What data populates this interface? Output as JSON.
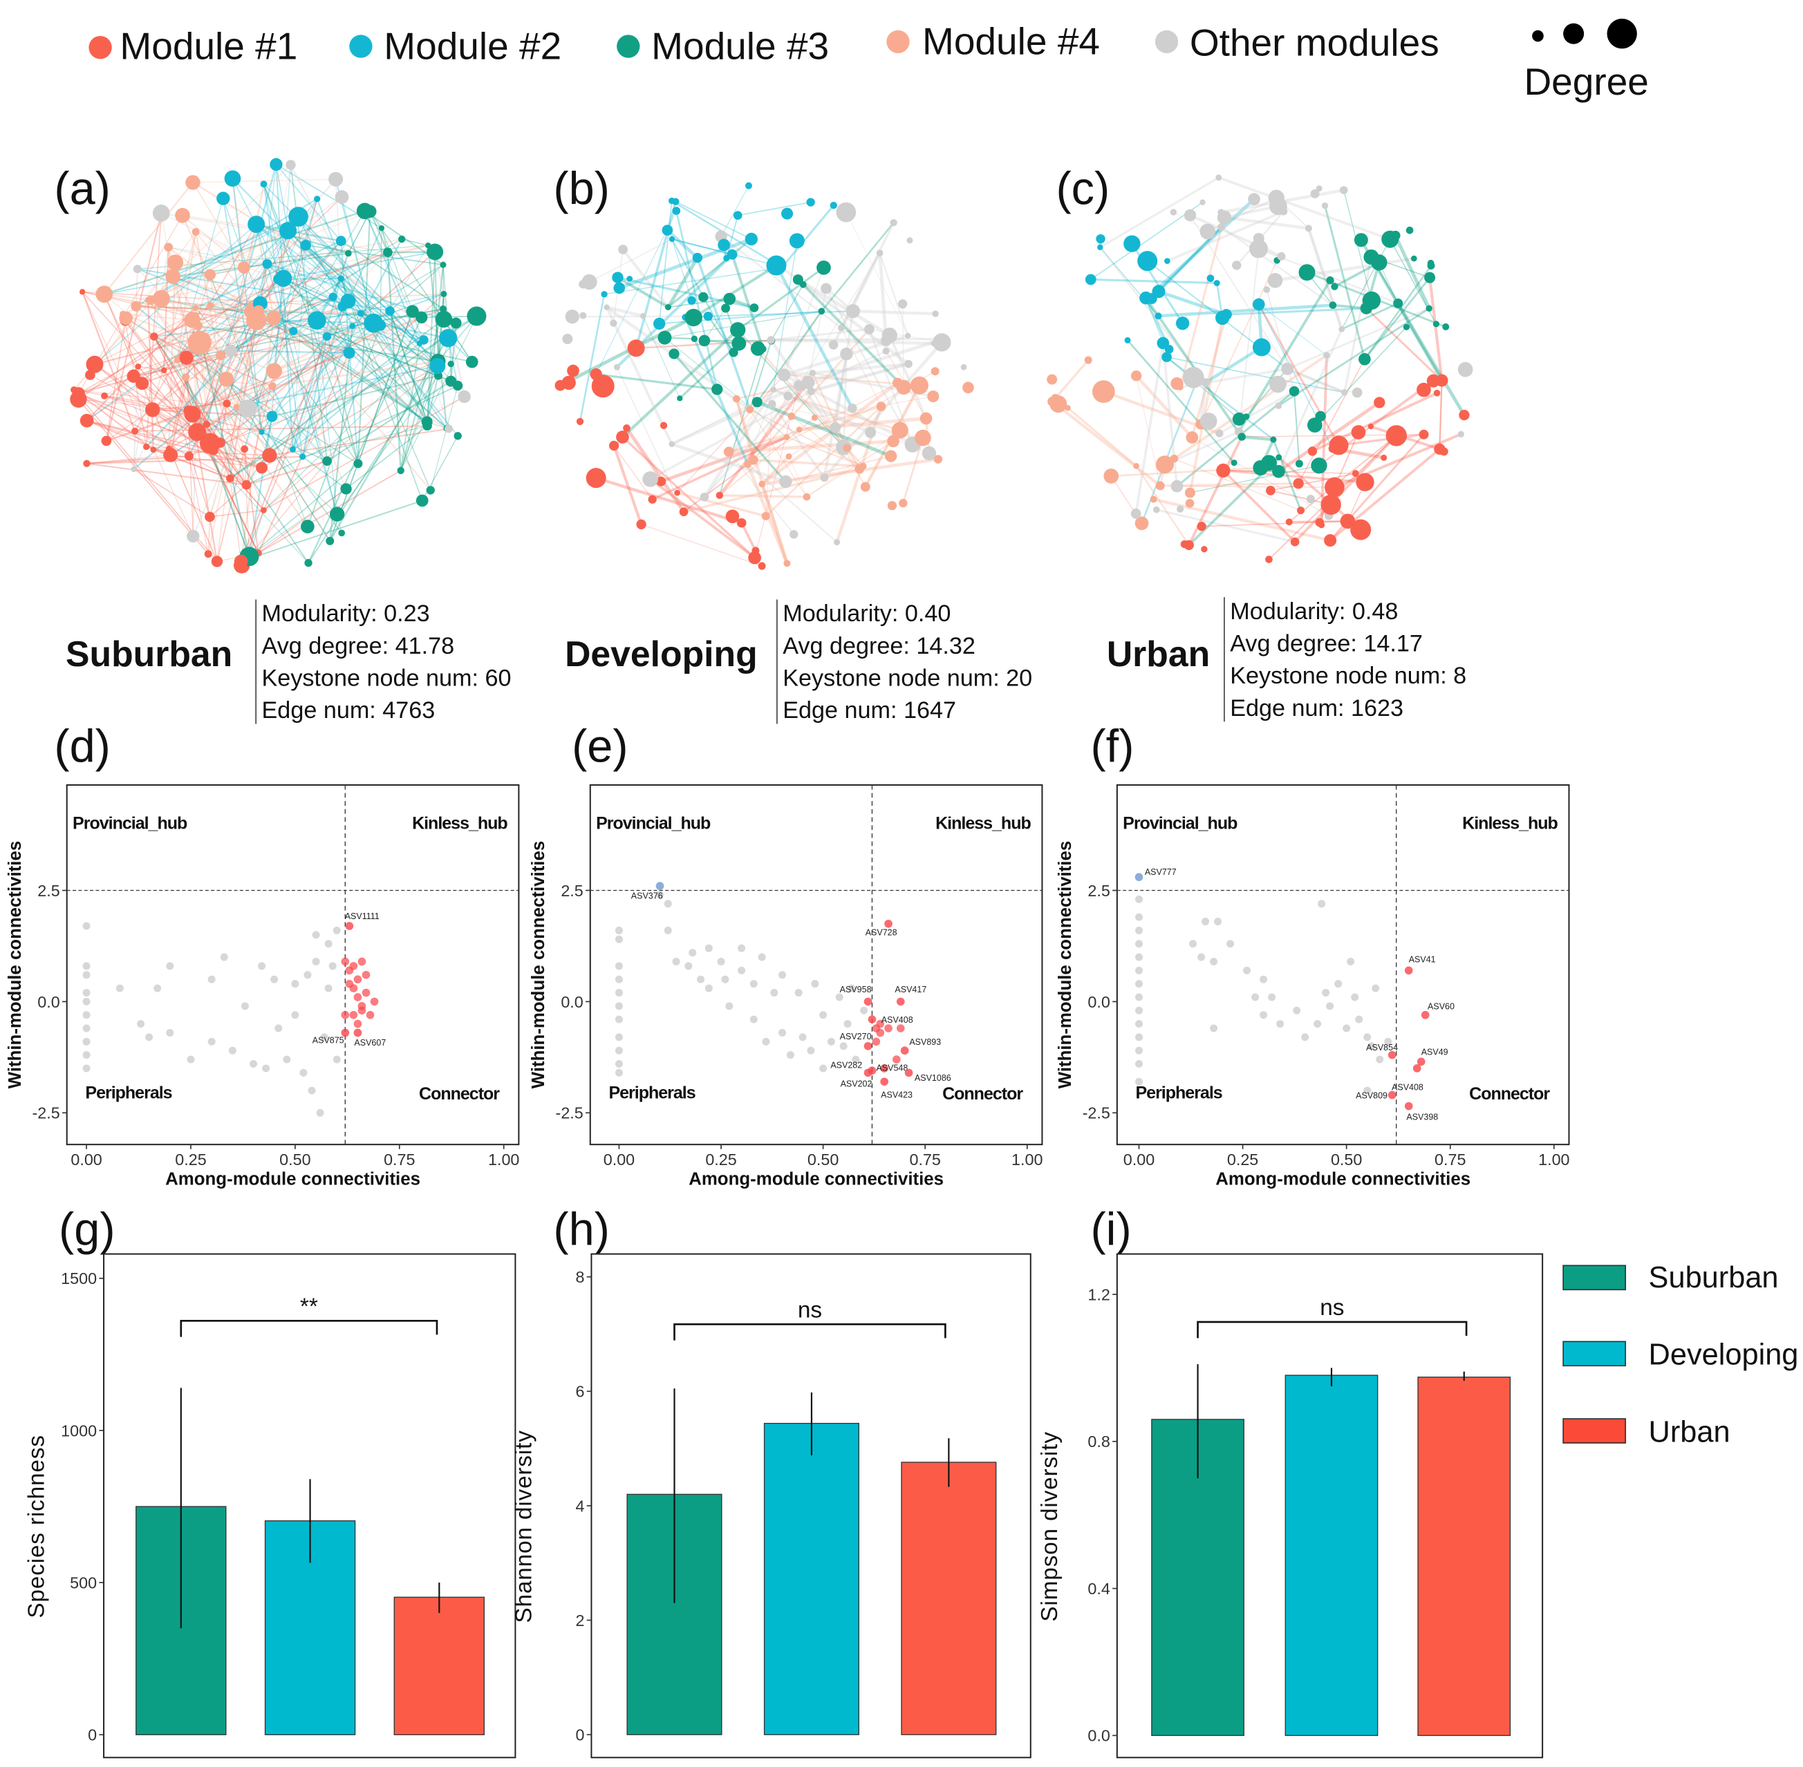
{
  "colors": {
    "module1": "#f9614f",
    "module2": "#14b7d2",
    "module3": "#12a085",
    "module4": "#f8ab90",
    "other": "#cfcfcf",
    "suburban": "#0b9e85",
    "developing": "#00b9cf",
    "urban": "#fc5c47",
    "provincial_hub": "#7098d0",
    "connector": "#f9444a"
  },
  "legend": {
    "modules": [
      {
        "label": "Module #1",
        "color_key": "module1"
      },
      {
        "label": "Module #2",
        "color_key": "module2"
      },
      {
        "label": "Module #3",
        "color_key": "module3"
      },
      {
        "label": "Module #4",
        "color_key": "module4"
      },
      {
        "label": "Other modules",
        "color_key": "other"
      }
    ],
    "degree_label": "Degree"
  },
  "networks": [
    {
      "panel": "(a)",
      "site": "Suburban",
      "stats": [
        "Modularity: 0.23",
        "Avg degree: 41.78",
        "Keystone node num: 60",
        "Edge num: 4763"
      ]
    },
    {
      "panel": "(b)",
      "site": "Developing",
      "stats": [
        "Modularity: 0.40",
        "Avg degree: 14.32",
        "Keystone node num: 20",
        "Edge num: 1647"
      ]
    },
    {
      "panel": "(c)",
      "site": "Urban",
      "stats": [
        "Modularity: 0.48",
        "Avg degree: 14.17",
        "Keystone node num: 8",
        "Edge num: 1623"
      ]
    }
  ],
  "chart_data": [
    {
      "type": "scatter",
      "panel": "(d)",
      "xlabel": "Among-module connectivities",
      "ylabel": "Within-module connectivities",
      "xlim": [
        -0.05,
        1.03
      ],
      "ylim": [
        -3.0,
        4.9
      ],
      "xticks": [
        "0.00",
        "0.25",
        "0.50",
        "0.75",
        "1.00"
      ],
      "yticks": [
        "-2.5",
        "0.0",
        "2.5"
      ],
      "thresholds": {
        "x": 0.62,
        "y": 2.5
      },
      "quadrants": [
        "Provincial_hub",
        "Kinless_hub",
        "Peripherals",
        "Connector"
      ],
      "gray_points": [
        [
          0,
          1.7
        ],
        [
          0,
          0.8
        ],
        [
          0,
          0.6
        ],
        [
          0,
          0.2
        ],
        [
          0,
          0
        ],
        [
          0,
          -0.3
        ],
        [
          0,
          -0.6
        ],
        [
          0,
          -0.9
        ],
        [
          0,
          -1.2
        ],
        [
          0,
          -1.5
        ],
        [
          0.08,
          0.3
        ],
        [
          0.13,
          -0.5
        ],
        [
          0.15,
          -0.8
        ],
        [
          0.17,
          0.3
        ],
        [
          0.2,
          0.8
        ],
        [
          0.2,
          -0.7
        ],
        [
          0.25,
          -1.3
        ],
        [
          0.3,
          0.5
        ],
        [
          0.3,
          -0.9
        ],
        [
          0.33,
          1.0
        ],
        [
          0.35,
          -1.1
        ],
        [
          0.38,
          -0.1
        ],
        [
          0.4,
          -1.4
        ],
        [
          0.42,
          0.8
        ],
        [
          0.43,
          -1.5
        ],
        [
          0.45,
          0.5
        ],
        [
          0.46,
          -0.6
        ],
        [
          0.48,
          -1.3
        ],
        [
          0.5,
          0.4
        ],
        [
          0.5,
          -0.3
        ],
        [
          0.52,
          -1.6
        ],
        [
          0.53,
          0.6
        ],
        [
          0.54,
          -2.0
        ],
        [
          0.55,
          1.5
        ],
        [
          0.55,
          0.9
        ],
        [
          0.56,
          -2.5
        ],
        [
          0.58,
          1.3
        ],
        [
          0.58,
          0.3
        ],
        [
          0.6,
          1.6
        ],
        [
          0.6,
          -1.3
        ],
        [
          0.59,
          0.8
        ],
        [
          0.57,
          -0.8
        ]
      ],
      "blue_points": [],
      "red_points": [
        [
          0.62,
          0.9
        ],
        [
          0.63,
          0.7
        ],
        [
          0.64,
          0.8
        ],
        [
          0.65,
          0.5
        ],
        [
          0.66,
          0.9
        ],
        [
          0.64,
          0.3
        ],
        [
          0.65,
          0.1
        ],
        [
          0.66,
          -0.1
        ],
        [
          0.67,
          0.2
        ],
        [
          0.68,
          -0.3
        ],
        [
          0.64,
          -0.3
        ],
        [
          0.62,
          -0.3
        ],
        [
          0.65,
          -0.5
        ],
        [
          0.66,
          -0.2
        ],
        [
          0.69,
          0
        ],
        [
          0.63,
          0.4
        ],
        [
          0.67,
          0.6
        ]
      ],
      "labeled_points": [
        {
          "label": "ASV1111",
          "x": 0.63,
          "y": 1.7,
          "kind": "red"
        },
        {
          "label": "ASV875",
          "x": 0.62,
          "y": -0.7,
          "kind": "red"
        },
        {
          "label": "ASV607",
          "x": 0.65,
          "y": -0.7,
          "kind": "red"
        }
      ]
    },
    {
      "type": "scatter",
      "panel": "(e)",
      "xlabel": "Among-module connectivities",
      "ylabel": "Within-module connectivities",
      "xlim": [
        -0.05,
        1.03
      ],
      "ylim": [
        -3.0,
        4.9
      ],
      "xticks": [
        "0.00",
        "0.25",
        "0.50",
        "0.75",
        "1.00"
      ],
      "yticks": [
        "-2.5",
        "0.0",
        "2.5"
      ],
      "thresholds": {
        "x": 0.62,
        "y": 2.5
      },
      "quadrants": [
        "Provincial_hub",
        "Kinless_hub",
        "Peripherals",
        "Connector"
      ],
      "gray_points": [
        [
          0,
          1.6
        ],
        [
          0,
          1.4
        ],
        [
          0,
          0.8
        ],
        [
          0,
          0.5
        ],
        [
          0,
          0.2
        ],
        [
          0,
          -0.1
        ],
        [
          0,
          -0.4
        ],
        [
          0,
          -0.8
        ],
        [
          0,
          -1.1
        ],
        [
          0,
          -1.4
        ],
        [
          0,
          -1.6
        ],
        [
          0.1,
          2.4
        ],
        [
          0.12,
          2.2
        ],
        [
          0.12,
          1.6
        ],
        [
          0.14,
          0.9
        ],
        [
          0.17,
          0.8
        ],
        [
          0.18,
          1.1
        ],
        [
          0.2,
          0.5
        ],
        [
          0.22,
          0.3
        ],
        [
          0.22,
          1.2
        ],
        [
          0.25,
          0.9
        ],
        [
          0.26,
          0.5
        ],
        [
          0.27,
          -0.1
        ],
        [
          0.3,
          0.7
        ],
        [
          0.3,
          1.2
        ],
        [
          0.33,
          0.4
        ],
        [
          0.33,
          -0.4
        ],
        [
          0.35,
          1.0
        ],
        [
          0.36,
          -0.9
        ],
        [
          0.38,
          0.2
        ],
        [
          0.4,
          0.6
        ],
        [
          0.4,
          -0.7
        ],
        [
          0.42,
          -1.2
        ],
        [
          0.44,
          0.2
        ],
        [
          0.45,
          -0.8
        ],
        [
          0.47,
          -1.1
        ],
        [
          0.48,
          0.4
        ],
        [
          0.5,
          -0.3
        ],
        [
          0.5,
          -1.5
        ],
        [
          0.52,
          -0.9
        ],
        [
          0.54,
          0.1
        ],
        [
          0.55,
          -1.0
        ],
        [
          0.56,
          -0.5
        ],
        [
          0.57,
          0.3
        ],
        [
          0.58,
          -1.3
        ],
        [
          0.6,
          -0.2
        ]
      ],
      "blue_points": [],
      "red_points": [
        [
          0.63,
          -0.6
        ],
        [
          0.64,
          -0.7
        ],
        [
          0.66,
          -0.6
        ],
        [
          0.64,
          -0.5
        ],
        [
          0.69,
          -0.6
        ],
        [
          0.68,
          -1.3
        ],
        [
          0.63,
          -0.9
        ]
      ],
      "labeled_points": [
        {
          "label": "ASV376",
          "x": 0.1,
          "y": 2.6,
          "kind": "blue"
        },
        {
          "label": "ASV728",
          "x": 0.66,
          "y": 1.75,
          "kind": "red"
        },
        {
          "label": "ASV958",
          "x": 0.61,
          "y": 0.0,
          "kind": "red"
        },
        {
          "label": "ASV417",
          "x": 0.69,
          "y": 0.0,
          "kind": "red"
        },
        {
          "label": "ASV408",
          "x": 0.62,
          "y": -0.4,
          "kind": "red"
        },
        {
          "label": "ASV270",
          "x": 0.61,
          "y": -1.0,
          "kind": "red"
        },
        {
          "label": "ASV893",
          "x": 0.7,
          "y": -1.1,
          "kind": "red"
        },
        {
          "label": "ASV282",
          "x": 0.61,
          "y": -1.6,
          "kind": "red"
        },
        {
          "label": "ASV548",
          "x": 0.65,
          "y": -1.5,
          "kind": "red"
        },
        {
          "label": "ASV1086",
          "x": 0.71,
          "y": -1.6,
          "kind": "red"
        },
        {
          "label": "ASV202",
          "x": 0.62,
          "y": -1.55,
          "kind": "red"
        },
        {
          "label": "ASV423",
          "x": 0.65,
          "y": -1.8,
          "kind": "red"
        }
      ]
    },
    {
      "type": "scatter",
      "panel": "(f)",
      "xlabel": "Among-module connectivities",
      "ylabel": "Within-module connectivities",
      "xlim": [
        -0.05,
        1.03
      ],
      "ylim": [
        -3.0,
        4.9
      ],
      "xticks": [
        "0.00",
        "0.25",
        "0.50",
        "0.75",
        "1.00"
      ],
      "yticks": [
        "-2.5",
        "0.0",
        "2.5"
      ],
      "thresholds": {
        "x": 0.62,
        "y": 2.5
      },
      "quadrants": [
        "Provincial_hub",
        "Kinless_hub",
        "Peripherals",
        "Connector"
      ],
      "gray_points": [
        [
          0,
          2.3
        ],
        [
          0,
          1.9
        ],
        [
          0,
          1.6
        ],
        [
          0,
          1.3
        ],
        [
          0,
          1.0
        ],
        [
          0,
          0.7
        ],
        [
          0,
          0.4
        ],
        [
          0,
          0.1
        ],
        [
          0,
          -0.2
        ],
        [
          0,
          -0.5
        ],
        [
          0,
          -0.8
        ],
        [
          0,
          -1.1
        ],
        [
          0,
          -1.4
        ],
        [
          0,
          -1.8
        ],
        [
          0.13,
          1.3
        ],
        [
          0.15,
          1.0
        ],
        [
          0.16,
          1.8
        ],
        [
          0.19,
          1.8
        ],
        [
          0.18,
          -0.6
        ],
        [
          0.18,
          0.9
        ],
        [
          0.22,
          1.3
        ],
        [
          0.26,
          0.7
        ],
        [
          0.28,
          0.1
        ],
        [
          0.3,
          0.5
        ],
        [
          0.3,
          -0.3
        ],
        [
          0.32,
          0.1
        ],
        [
          0.34,
          -0.5
        ],
        [
          0.38,
          -0.2
        ],
        [
          0.4,
          -0.8
        ],
        [
          0.43,
          -0.5
        ],
        [
          0.44,
          2.2
        ],
        [
          0.45,
          0.2
        ],
        [
          0.46,
          -0.1
        ],
        [
          0.48,
          0.4
        ],
        [
          0.5,
          -0.6
        ],
        [
          0.51,
          0.9
        ],
        [
          0.52,
          0.1
        ],
        [
          0.53,
          -0.4
        ],
        [
          0.55,
          -0.8
        ],
        [
          0.56,
          -1.0
        ],
        [
          0.57,
          0.3
        ],
        [
          0.58,
          -1.3
        ],
        [
          0.6,
          -0.9
        ],
        [
          0.55,
          -2.0
        ]
      ],
      "blue_points": [],
      "red_points": [],
      "labeled_points": [
        {
          "label": "ASV777",
          "x": 0.0,
          "y": 2.8,
          "kind": "blue"
        },
        {
          "label": "ASV41",
          "x": 0.65,
          "y": 0.7,
          "kind": "red"
        },
        {
          "label": "ASV60",
          "x": 0.69,
          "y": -0.3,
          "kind": "red"
        },
        {
          "label": "ASV854",
          "x": 0.61,
          "y": -1.2,
          "kind": "red"
        },
        {
          "label": "ASV49",
          "x": 0.68,
          "y": -1.35,
          "kind": "red"
        },
        {
          "label": "ASV408",
          "x": 0.67,
          "y": -1.5,
          "kind": "red"
        },
        {
          "label": "ASV809",
          "x": 0.61,
          "y": -2.1,
          "kind": "red"
        },
        {
          "label": "ASV398",
          "x": 0.65,
          "y": -2.35,
          "kind": "red"
        }
      ]
    },
    {
      "type": "bar",
      "panel": "(g)",
      "ylabel": "Species richness",
      "categories": [
        "Suburban",
        "Developing",
        "Urban"
      ],
      "values": [
        750,
        703,
        452
      ],
      "error_low": [
        350,
        565,
        400
      ],
      "error_high": [
        1140,
        840,
        500
      ],
      "ylim": [
        -75,
        1580
      ],
      "yticks": [
        0,
        500,
        1000,
        1500
      ],
      "significance": "**"
    },
    {
      "type": "bar",
      "panel": "(h)",
      "ylabel": "Shannon diversity",
      "categories": [
        "Suburban",
        "Developing",
        "Urban"
      ],
      "values": [
        4.2,
        5.44,
        4.76
      ],
      "error_low": [
        2.3,
        4.88,
        4.33
      ],
      "error_high": [
        6.05,
        5.98,
        5.18
      ],
      "ylim": [
        -0.4,
        8.4
      ],
      "yticks": [
        0,
        2,
        4,
        6,
        8
      ],
      "significance": "ns"
    },
    {
      "type": "bar",
      "panel": "(i)",
      "ylabel": "Simpson diversity",
      "categories": [
        "Suburban",
        "Developing",
        "Urban"
      ],
      "values": [
        0.86,
        0.98,
        0.975
      ],
      "error_low": [
        0.7,
        0.95,
        0.965
      ],
      "error_high": [
        1.01,
        1.0,
        0.99
      ],
      "ylim": [
        -0.06,
        1.31
      ],
      "yticks": [
        "0.0",
        "0.4",
        "0.8",
        "1.2"
      ],
      "significance": "ns"
    }
  ],
  "bar_legend": [
    "Suburban",
    "Developing",
    "Urban"
  ]
}
